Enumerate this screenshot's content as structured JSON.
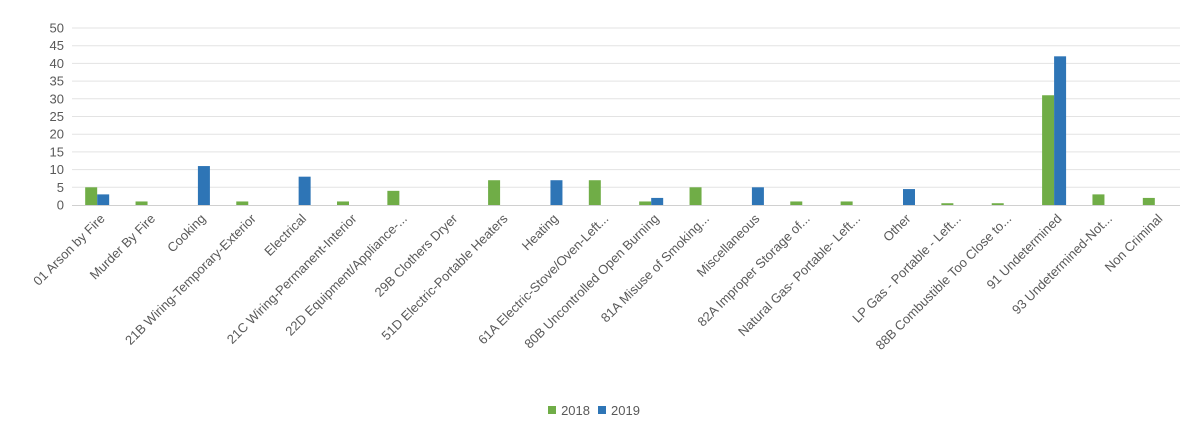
{
  "chart_data": {
    "type": "bar",
    "title": "",
    "xlabel": "",
    "ylabel": "",
    "ylim": [
      0,
      50
    ],
    "yticks": [
      0,
      5,
      10,
      15,
      20,
      25,
      30,
      35,
      40,
      45,
      50
    ],
    "grid": true,
    "legend_position": "bottom",
    "categories": [
      "01 Arson by Fire",
      "Murder By Fire",
      "Cooking",
      "21B Wiring-Temporary-Exterior",
      "Electrical",
      "21C Wiring-Permanent-Interior",
      "22D Equipment/Appliance-...",
      "29B Clothers Dryer",
      "51D Electric-Portable Heaters",
      "Heating",
      "61A Electric-Stove/Oven-Left...",
      "80B Uncontrolled Open Burning",
      "81A Misuse of Smoking...",
      "Miscellaneous",
      "82A Improper Storage of...",
      "Natural Gas- Portable- Left...",
      "Other",
      "LP Gas - Portable - Left...",
      "88B Combustible Too Close to...",
      "91 Undetermined",
      "93 Undetermined-Not...",
      "Non Criminal"
    ],
    "series": [
      {
        "name": "2018",
        "color": "#70ad47",
        "values": [
          5,
          1,
          0,
          1,
          0,
          1,
          4,
          0,
          7,
          0,
          7,
          1,
          5,
          0,
          1,
          1,
          0,
          0.5,
          0.5,
          31,
          3,
          2
        ]
      },
      {
        "name": "2019",
        "color": "#2e75b6",
        "values": [
          3,
          0,
          11,
          0,
          8,
          0,
          0,
          0,
          0,
          7,
          0,
          2,
          0,
          5,
          0,
          0,
          4.5,
          0,
          0,
          42,
          0,
          0
        ]
      }
    ]
  }
}
